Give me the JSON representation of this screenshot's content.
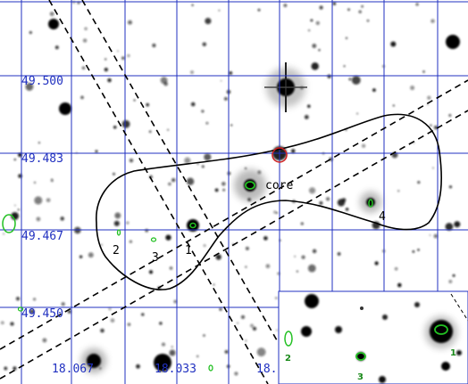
{
  "grid_color": "#2030c0",
  "background": "#ffffff",
  "dec_labels": [
    "49.500",
    "49.483",
    "49.467",
    "49.450"
  ],
  "ra_labels": [
    "18.067",
    "18.033",
    "18."
  ],
  "core_label": "core",
  "source_labels": [
    "1",
    "2",
    "3",
    "4"
  ],
  "inset_labels": [
    "1",
    "2",
    "3"
  ],
  "colors": {
    "grid": "#2030c0",
    "ellipse_green": "#22c022",
    "circle_red": "#d02020",
    "contour": "#000000",
    "inset_label": "#1a8a1a"
  }
}
